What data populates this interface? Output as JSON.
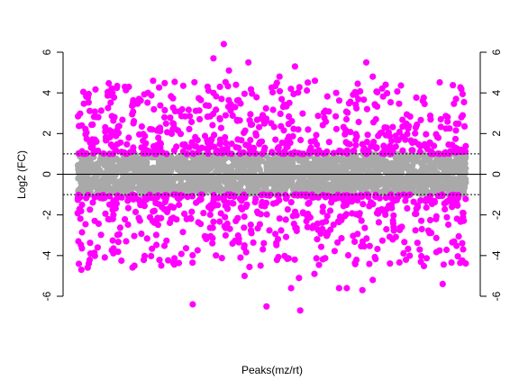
{
  "chart_data": {
    "type": "scatter",
    "title": "",
    "xlabel": "Peaks(mz/rt)",
    "ylabel": "Log2 (FC)",
    "ylim": [
      -6,
      6
    ],
    "yticks": [
      -6,
      -4,
      -2,
      0,
      2,
      4,
      6
    ],
    "ytick_labels": [
      "-6",
      "-4",
      "-2",
      "0",
      "2",
      "4",
      "6"
    ],
    "right_axis": true,
    "thresholds": [
      1,
      -1
    ],
    "zero_line": 0,
    "grid": false,
    "legend": "none",
    "colors": {
      "significant": "#ff00ff",
      "not_significant": "#a9a9a9",
      "axis": "#000000"
    },
    "n_points": 3000,
    "series": [
      {
        "color": "#a9a9a9",
        "y_range": [
          -1,
          1
        ],
        "count": 1900
      },
      {
        "color": "#ff00ff",
        "y_range": [
          1,
          6.4
        ],
        "count": 560
      },
      {
        "color": "#ff00ff",
        "y_range": [
          -6.7,
          -1
        ],
        "count": 540
      }
    ],
    "extreme_points": [
      {
        "x": 1130,
        "y": 6.4
      },
      {
        "x": 1050,
        "y": 5.7
      },
      {
        "x": 1320,
        "y": 5.5
      },
      {
        "x": 1170,
        "y": 5.1
      },
      {
        "x": 1680,
        "y": 5.3
      },
      {
        "x": 2230,
        "y": 5.5
      },
      {
        "x": 1560,
        "y": 4.8
      },
      {
        "x": 1100,
        "y": 4.3
      },
      {
        "x": 2280,
        "y": 4.8
      },
      {
        "x": 2380,
        "y": 4.4
      },
      {
        "x": 30,
        "y": -4.7
      },
      {
        "x": 100,
        "y": -3.9
      },
      {
        "x": 440,
        "y": -4.5
      },
      {
        "x": 890,
        "y": -6.4
      },
      {
        "x": 1290,
        "y": -5.0
      },
      {
        "x": 1460,
        "y": -6.5
      },
      {
        "x": 1650,
        "y": -5.6
      },
      {
        "x": 1710,
        "y": -5.1
      },
      {
        "x": 1720,
        "y": -6.7
      },
      {
        "x": 1830,
        "y": -4.9
      },
      {
        "x": 2020,
        "y": -5.6
      },
      {
        "x": 2080,
        "y": -5.6
      },
      {
        "x": 2200,
        "y": -5.7
      },
      {
        "x": 2280,
        "y": -5.2
      },
      {
        "x": 2820,
        "y": -5.4
      }
    ]
  }
}
